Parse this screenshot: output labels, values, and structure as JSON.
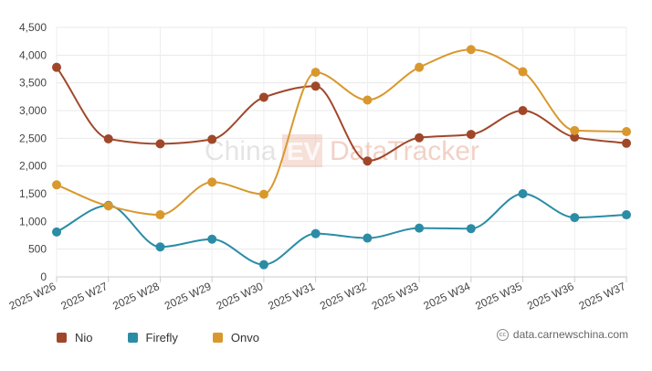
{
  "chart_data": {
    "type": "line",
    "categories": [
      "2025 W26",
      "2025 W27",
      "2025 W28",
      "2025 W29",
      "2025 W30",
      "2025 W31",
      "2025 W32",
      "2025 W33",
      "2025 W34",
      "2025 W35",
      "2025 W36",
      "2025 W37"
    ],
    "y_ticks": [
      "0",
      "500",
      "1,000",
      "1,500",
      "2,000",
      "2,500",
      "3,000",
      "3,500",
      "4,000",
      "4,500"
    ],
    "ylim": [
      0,
      4500
    ],
    "grid": true,
    "legend_position": "bottom-left",
    "series": [
      {
        "name": "Nio",
        "color": "#a0472a",
        "values": [
          3780,
          2490,
          2400,
          2480,
          3240,
          3440,
          2090,
          2510,
          2570,
          3000,
          2520,
          2410
        ]
      },
      {
        "name": "Firefly",
        "color": "#2b8ca6",
        "values": [
          810,
          1290,
          540,
          680,
          220,
          780,
          700,
          880,
          870,
          1500,
          1070,
          1120
        ]
      },
      {
        "name": "Onvo",
        "color": "#d9982e",
        "values": [
          1660,
          1280,
          1120,
          1710,
          1490,
          3690,
          3190,
          3780,
          4100,
          3700,
          2640,
          2620
        ]
      }
    ],
    "watermark": {
      "part1": "China",
      "badge": "EV",
      "part2": "DataTracker"
    },
    "source_text": "data.carnewschina.com",
    "source_icon": "cc-icon"
  }
}
